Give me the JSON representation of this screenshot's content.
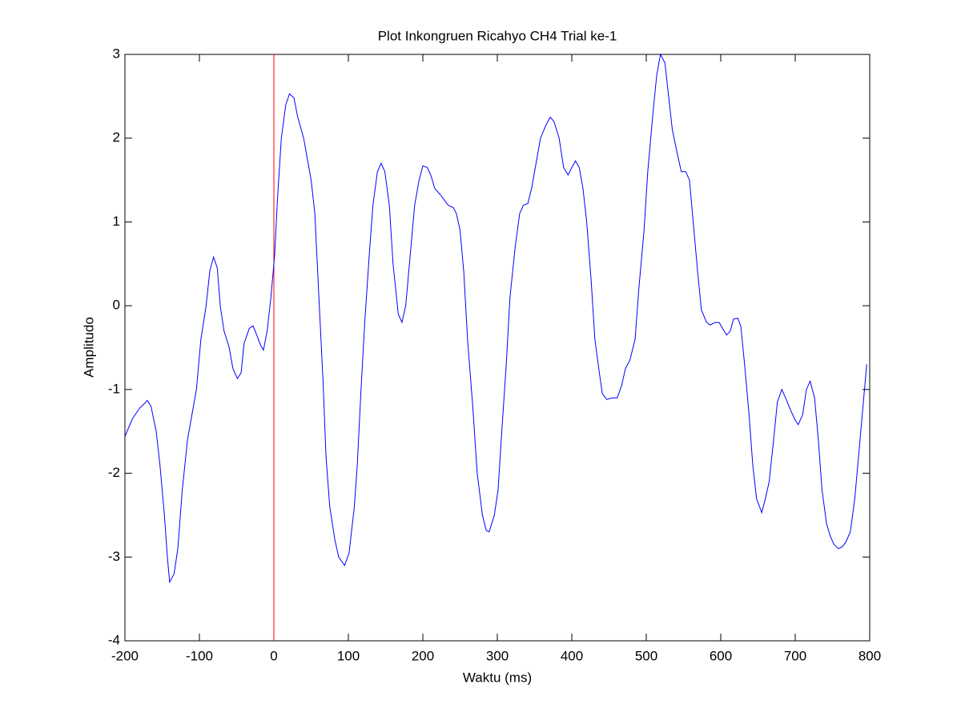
{
  "chart_data": {
    "type": "line",
    "title": "Plot Inkongruen Ricahyo CH4 Trial ke-1",
    "x_label": "Waktu (ms)",
    "y_label": "Amplitudo",
    "x": [
      -200,
      -190,
      -180,
      -174,
      -170,
      -165,
      -158,
      -153,
      -147,
      -143,
      -140,
      -134,
      -129,
      -123,
      -116,
      -110,
      -104,
      -98,
      -91,
      -86,
      -81,
      -76,
      -72,
      -67,
      -60,
      -55,
      -49,
      -44,
      -40,
      -33,
      -28,
      -23,
      -18,
      -14,
      -9,
      -4,
      1,
      5,
      10,
      16,
      21,
      27,
      32,
      40,
      45,
      50,
      55,
      61,
      66,
      70,
      75,
      82,
      87,
      95,
      101,
      108,
      112,
      117,
      122,
      128,
      133,
      139,
      144,
      149,
      155,
      160,
      167,
      172,
      177,
      183,
      189,
      195,
      200,
      206,
      211,
      216,
      223,
      229,
      234,
      241,
      245,
      250,
      255,
      260,
      267,
      273,
      280,
      285,
      289,
      296,
      301,
      306,
      312,
      317,
      324,
      330,
      335,
      341,
      346,
      353,
      358,
      365,
      371,
      376,
      383,
      389,
      395,
      400,
      405,
      410,
      415,
      420,
      426,
      431,
      437,
      441,
      447,
      454,
      461,
      467,
      472,
      478,
      485,
      490,
      497,
      502,
      509,
      514,
      519,
      525,
      530,
      535,
      542,
      547,
      553,
      558,
      563,
      569,
      574,
      581,
      586,
      592,
      598,
      603,
      608,
      613,
      617,
      623,
      627,
      632,
      638,
      643,
      648,
      655,
      660,
      665,
      671,
      676,
      682,
      687,
      694,
      699,
      704,
      710,
      715,
      720,
      726,
      731,
      736,
      742,
      747,
      752,
      758,
      763,
      768,
      774,
      780,
      785,
      790,
      796
    ],
    "series": [
      {
        "color": "#0000ff",
        "values": [
          -1.56,
          -1.35,
          -1.22,
          -1.17,
          -1.13,
          -1.2,
          -1.5,
          -1.9,
          -2.5,
          -3.0,
          -3.3,
          -3.2,
          -2.9,
          -2.2,
          -1.6,
          -1.3,
          -1.0,
          -0.4,
          0.0,
          0.42,
          0.58,
          0.45,
          0.0,
          -0.3,
          -0.5,
          -0.75,
          -0.87,
          -0.8,
          -0.45,
          -0.27,
          -0.24,
          -0.35,
          -0.47,
          -0.53,
          -0.3,
          0.1,
          0.6,
          1.3,
          2.0,
          2.4,
          2.53,
          2.48,
          2.25,
          2.0,
          1.75,
          1.5,
          1.1,
          0.0,
          -0.9,
          -1.8,
          -2.4,
          -2.8,
          -3.0,
          -3.1,
          -2.95,
          -2.4,
          -1.9,
          -1.0,
          -0.2,
          0.6,
          1.2,
          1.6,
          1.7,
          1.6,
          1.2,
          0.5,
          -0.1,
          -0.2,
          0.0,
          0.6,
          1.2,
          1.5,
          1.67,
          1.65,
          1.55,
          1.4,
          1.33,
          1.26,
          1.2,
          1.17,
          1.1,
          0.9,
          0.4,
          -0.4,
          -1.2,
          -2.0,
          -2.5,
          -2.68,
          -2.7,
          -2.5,
          -2.2,
          -1.5,
          -0.7,
          0.1,
          0.7,
          1.1,
          1.2,
          1.22,
          1.4,
          1.75,
          2.0,
          2.15,
          2.25,
          2.2,
          2.0,
          1.65,
          1.56,
          1.65,
          1.73,
          1.65,
          1.4,
          1.0,
          0.3,
          -0.4,
          -0.8,
          -1.05,
          -1.12,
          -1.1,
          -1.1,
          -0.95,
          -0.75,
          -0.65,
          -0.4,
          0.2,
          0.9,
          1.6,
          2.3,
          2.75,
          3.0,
          2.9,
          2.5,
          2.1,
          1.8,
          1.6,
          1.6,
          1.5,
          1.0,
          0.4,
          -0.05,
          -0.2,
          -0.23,
          -0.2,
          -0.2,
          -0.28,
          -0.35,
          -0.3,
          -0.16,
          -0.15,
          -0.25,
          -0.7,
          -1.3,
          -1.9,
          -2.3,
          -2.47,
          -2.3,
          -2.1,
          -1.6,
          -1.15,
          -1.0,
          -1.1,
          -1.25,
          -1.35,
          -1.42,
          -1.3,
          -1.0,
          -0.9,
          -1.1,
          -1.6,
          -2.2,
          -2.6,
          -2.75,
          -2.85,
          -2.9,
          -2.88,
          -2.82,
          -2.7,
          -2.3,
          -1.8,
          -1.3,
          -0.7
        ]
      }
    ],
    "vline": {
      "x": 0,
      "color": "#ff0000"
    },
    "xlim": [
      -200,
      800
    ],
    "xticks": [
      -200,
      -100,
      0,
      100,
      200,
      300,
      400,
      500,
      600,
      700,
      800
    ],
    "ylim": [
      -4,
      3
    ],
    "yticks": [
      -4,
      -3,
      -2,
      -1,
      0,
      1,
      2,
      3
    ]
  }
}
